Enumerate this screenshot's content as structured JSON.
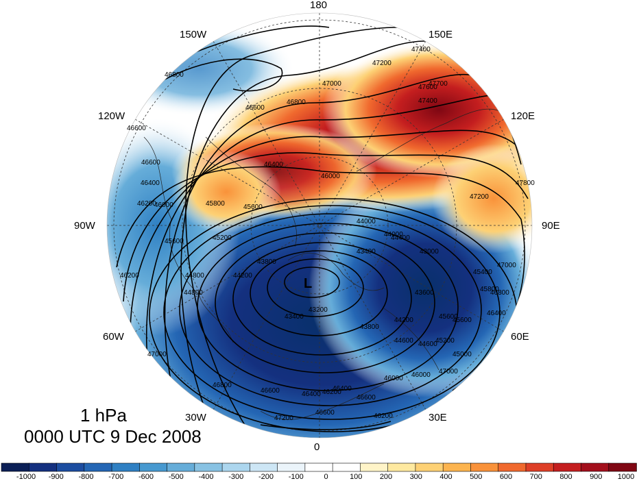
{
  "map": {
    "projection": "north-polar-stereographic",
    "level_label": "1 hPa",
    "time_label": "0000 UTC 9 Dec 2008",
    "low_marker": "L",
    "longitude_labels": [
      "180",
      "150E",
      "120E",
      "90E",
      "60E",
      "30E",
      "0",
      "30W",
      "60W",
      "90W",
      "120W",
      "150W"
    ],
    "contour_labels": [
      "46800",
      "46600",
      "46800",
      "47000",
      "47200",
      "47400",
      "46600",
      "47600",
      "46400",
      "46000",
      "46600",
      "46400",
      "46200",
      "46000",
      "45800",
      "45600",
      "45600",
      "45200",
      "44800",
      "44000",
      "44400",
      "43800",
      "43400",
      "43000",
      "44200",
      "44800",
      "46200",
      "45400",
      "45800",
      "46400",
      "46800",
      "47000",
      "47200",
      "47400",
      "47800",
      "47700",
      "43200",
      "44000",
      "43400",
      "43600",
      "43800",
      "44200",
      "44600",
      "45000",
      "45600",
      "46000",
      "46200",
      "46400",
      "46600",
      "46800",
      "47000",
      "47200",
      "46600",
      "46400",
      "46200",
      "47000",
      "46600",
      "44600",
      "45200",
      "45600",
      "46000"
    ],
    "colors": {
      "negative_max": "#08306b",
      "neutral": "#ffffff",
      "positive_max": "#7f0000"
    }
  },
  "colorbar": {
    "labels": [
      "-1000",
      "-900",
      "-800",
      "-700",
      "-600",
      "-500",
      "-400",
      "-300",
      "-200",
      "-100",
      "0",
      "100",
      "200",
      "300",
      "400",
      "500",
      "600",
      "700",
      "800",
      "900",
      "1000"
    ],
    "colors": [
      "#0b1f56",
      "#14307f",
      "#1c4da0",
      "#2466b4",
      "#2f80c3",
      "#4799d0",
      "#66add9",
      "#88c2e3",
      "#acd6ee",
      "#cde6f5",
      "#ebf4fa",
      "#ffffff",
      "#ffffff",
      "#fff4c8",
      "#fee9a0",
      "#fdd175",
      "#fcb44f",
      "#f9923a",
      "#f0692e",
      "#de3f27",
      "#c41e1f",
      "#a30f1c",
      "#7f0713"
    ]
  }
}
